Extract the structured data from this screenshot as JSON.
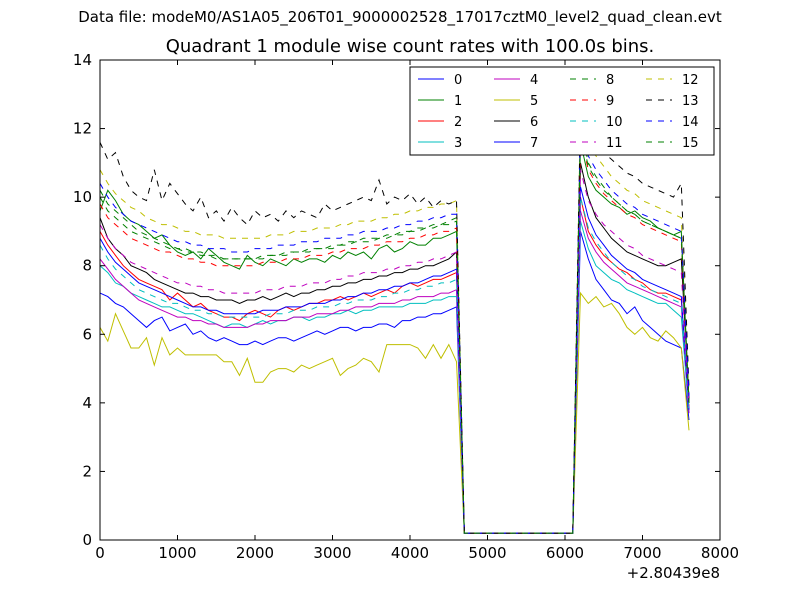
{
  "suptitle": "Data file: modeM0/AS1A05_206T01_9000002528_17017cztM0_level2_quad_clean.evt",
  "chart_data": {
    "type": "line",
    "title": "Quadrant 1 module wise count rates with 100.0s bins.",
    "xlabel": "",
    "ylabel": "",
    "x_offset_label": "+2.80439e8",
    "xlim": [
      0,
      8000
    ],
    "ylim": [
      0,
      14
    ],
    "xticks": [
      0,
      1000,
      2000,
      3000,
      4000,
      5000,
      6000,
      7000,
      8000
    ],
    "yticks": [
      0,
      2,
      4,
      6,
      8,
      10,
      12,
      14
    ],
    "grid": false,
    "legend": {
      "position": "top-right",
      "columns": 4
    },
    "bin_seconds": 100,
    "x": [
      0,
      100,
      200,
      300,
      400,
      500,
      600,
      700,
      800,
      900,
      1000,
      1100,
      1200,
      1300,
      1400,
      1500,
      1600,
      1700,
      1800,
      1900,
      2000,
      2100,
      2200,
      2300,
      2400,
      2500,
      2600,
      2700,
      2800,
      2900,
      3000,
      3100,
      3200,
      3300,
      3400,
      3500,
      3600,
      3700,
      3800,
      3900,
      4000,
      4100,
      4200,
      4300,
      4400,
      4500,
      4600,
      4700,
      4800,
      4900,
      5000,
      5100,
      5200,
      5300,
      5400,
      5500,
      5600,
      5700,
      5800,
      5900,
      6000,
      6100,
      6200,
      6300,
      6400,
      6500,
      6600,
      6700,
      6800,
      6900,
      7000,
      7100,
      7200,
      7300,
      7400,
      7500,
      7600
    ],
    "gap": {
      "start": 4700,
      "end": 6200,
      "dip_value": 0.2,
      "fall_index": 46,
      "rise_index": 62
    },
    "series": [
      {
        "name": "0",
        "color": "#0000ff",
        "dash": false,
        "pre": [
          7.2,
          7.1,
          6.9,
          6.8,
          6.6,
          6.4,
          6.2,
          6.4,
          6.5,
          6.1,
          6.2,
          6.3,
          6.0,
          6.1,
          5.9,
          5.8,
          5.9,
          5.8,
          5.7,
          5.7,
          5.8,
          5.7,
          5.8,
          5.9,
          5.9,
          5.8,
          5.9,
          6.0,
          6.1,
          6.0,
          6.1,
          6.2,
          6.2,
          6.1,
          6.2,
          6.2,
          6.3,
          6.3,
          6.2,
          6.4,
          6.4,
          6.5,
          6.5,
          6.6,
          6.6,
          6.7,
          6.8
        ],
        "post": [
          9.0,
          8.2,
          7.6,
          7.3,
          7.0,
          6.9,
          6.6,
          6.8,
          6.4,
          6.2,
          6.0,
          5.8,
          5.7,
          5.6,
          3.5
        ]
      },
      {
        "name": "1",
        "color": "#008000",
        "dash": false,
        "pre": [
          9.6,
          10.2,
          9.9,
          9.5,
          9.3,
          9.2,
          9.0,
          8.8,
          8.9,
          8.6,
          8.4,
          8.3,
          8.4,
          8.2,
          8.5,
          8.3,
          8.1,
          8.0,
          7.9,
          8.3,
          8.1,
          8.0,
          8.2,
          8.1,
          8.0,
          8.2,
          8.1,
          8.2,
          8.2,
          8.1,
          8.3,
          8.2,
          8.4,
          8.3,
          8.4,
          8.2,
          8.5,
          8.6,
          8.4,
          8.5,
          8.7,
          8.6,
          8.6,
          8.8,
          8.8,
          8.9,
          9.0
        ],
        "post": [
          11.6,
          10.6,
          10.2,
          10.0,
          9.8,
          9.7,
          9.5,
          9.6,
          9.4,
          9.3,
          9.1,
          9.0,
          8.9,
          9.0,
          4.0
        ]
      },
      {
        "name": "2",
        "color": "#ff0000",
        "dash": false,
        "pre": [
          9.0,
          8.6,
          8.3,
          8.0,
          7.8,
          7.6,
          7.5,
          7.4,
          7.3,
          7.0,
          7.2,
          7.0,
          6.8,
          6.9,
          6.7,
          6.6,
          6.5,
          6.5,
          6.4,
          6.6,
          6.7,
          6.6,
          6.5,
          6.7,
          6.8,
          6.7,
          6.8,
          6.9,
          6.9,
          7.0,
          7.0,
          7.1,
          7.0,
          7.1,
          7.2,
          7.1,
          7.2,
          7.3,
          7.2,
          7.4,
          7.5,
          7.4,
          7.5,
          7.6,
          7.6,
          7.7,
          7.8
        ],
        "post": [
          10.0,
          9.0,
          8.6,
          8.3,
          8.1,
          7.9,
          7.8,
          7.6,
          7.5,
          7.3,
          7.2,
          7.2,
          7.1,
          7.0,
          3.8
        ]
      },
      {
        "name": "3",
        "color": "#00bfbf",
        "dash": false,
        "pre": [
          8.0,
          7.8,
          7.5,
          7.4,
          7.2,
          7.1,
          7.0,
          6.9,
          6.8,
          6.8,
          6.7,
          6.6,
          6.6,
          6.5,
          6.4,
          6.3,
          6.2,
          6.3,
          6.3,
          6.2,
          6.3,
          6.4,
          6.3,
          6.4,
          6.4,
          6.5,
          6.5,
          6.4,
          6.5,
          6.5,
          6.6,
          6.6,
          6.7,
          6.6,
          6.7,
          6.7,
          6.8,
          6.8,
          6.8,
          6.8,
          6.9,
          6.9,
          6.9,
          7.0,
          7.0,
          7.1,
          7.1
        ],
        "post": [
          9.3,
          8.5,
          8.0,
          7.8,
          7.6,
          7.5,
          7.3,
          7.2,
          7.1,
          7.0,
          6.9,
          6.9,
          6.7,
          6.5,
          3.7
        ]
      },
      {
        "name": "4",
        "color": "#bf00bf",
        "dash": false,
        "pre": [
          8.2,
          7.9,
          7.6,
          7.4,
          7.2,
          7.0,
          6.9,
          6.8,
          6.7,
          6.6,
          6.5,
          6.5,
          6.4,
          6.4,
          6.3,
          6.3,
          6.2,
          6.2,
          6.2,
          6.2,
          6.3,
          6.3,
          6.4,
          6.4,
          6.4,
          6.5,
          6.5,
          6.5,
          6.6,
          6.6,
          6.6,
          6.7,
          6.7,
          6.8,
          6.8,
          6.8,
          6.9,
          6.9,
          6.9,
          7.0,
          7.0,
          7.1,
          7.1,
          7.1,
          7.2,
          7.2,
          7.3
        ],
        "post": [
          9.6,
          8.8,
          8.4,
          8.1,
          7.9,
          7.7,
          7.5,
          7.4,
          7.3,
          7.2,
          7.1,
          7.0,
          6.9,
          6.8,
          3.7
        ]
      },
      {
        "name": "5",
        "color": "#bfbf00",
        "dash": false,
        "pre": [
          6.2,
          5.8,
          6.6,
          6.1,
          5.6,
          5.6,
          5.9,
          5.1,
          5.9,
          5.4,
          5.6,
          5.4,
          5.4,
          5.4,
          5.4,
          5.4,
          5.2,
          5.2,
          4.8,
          5.3,
          4.6,
          4.6,
          4.9,
          5.0,
          5.0,
          4.9,
          5.1,
          5.0,
          5.1,
          5.2,
          5.3,
          4.8,
          5.0,
          5.1,
          5.3,
          5.2,
          4.9,
          5.7,
          5.7,
          5.7,
          5.7,
          5.6,
          5.3,
          5.7,
          5.3,
          5.7,
          5.2
        ],
        "post": [
          7.2,
          6.9,
          7.1,
          6.8,
          6.9,
          6.6,
          6.2,
          6.0,
          6.2,
          5.9,
          5.8,
          6.1,
          5.9,
          5.6,
          3.2
        ]
      },
      {
        "name": "6",
        "color": "#000000",
        "dash": false,
        "pre": [
          9.4,
          8.8,
          8.5,
          8.3,
          8.0,
          7.9,
          7.8,
          7.6,
          7.5,
          7.4,
          7.3,
          7.2,
          7.2,
          7.1,
          7.1,
          7.0,
          7.0,
          7.0,
          6.9,
          7.0,
          7.0,
          7.1,
          7.0,
          7.1,
          7.2,
          7.1,
          7.2,
          7.2,
          7.3,
          7.3,
          7.4,
          7.4,
          7.5,
          7.5,
          7.6,
          7.6,
          7.7,
          7.7,
          7.8,
          7.8,
          7.9,
          7.9,
          8.0,
          8.0,
          8.1,
          8.2,
          8.4
        ],
        "post": [
          11.0,
          10.0,
          9.4,
          9.1,
          8.8,
          8.6,
          8.4,
          8.3,
          8.2,
          8.1,
          8.0,
          8.0,
          8.1,
          8.2,
          4.1
        ]
      },
      {
        "name": "7",
        "color": "#0000ff",
        "dash": false,
        "pre": [
          8.8,
          8.4,
          8.1,
          7.9,
          7.7,
          7.5,
          7.4,
          7.3,
          7.2,
          7.1,
          7.0,
          6.9,
          6.8,
          6.8,
          6.7,
          6.7,
          6.6,
          6.6,
          6.6,
          6.6,
          6.6,
          6.7,
          6.7,
          6.7,
          6.8,
          6.8,
          6.8,
          6.9,
          6.9,
          6.9,
          7.0,
          7.0,
          7.1,
          7.1,
          7.2,
          7.2,
          7.3,
          7.3,
          7.4,
          7.4,
          7.5,
          7.5,
          7.6,
          7.7,
          7.7,
          7.8,
          7.9
        ],
        "post": [
          10.3,
          9.4,
          8.9,
          8.6,
          8.3,
          8.1,
          7.9,
          7.8,
          7.6,
          7.5,
          7.4,
          7.3,
          7.2,
          7.1,
          3.8
        ]
      },
      {
        "name": "8",
        "color": "#008000",
        "dash": true,
        "pre": [
          10.2,
          9.8,
          9.6,
          9.4,
          9.2,
          9.0,
          8.9,
          8.8,
          8.7,
          8.6,
          8.5,
          8.5,
          8.4,
          8.4,
          8.3,
          8.3,
          8.2,
          8.2,
          8.2,
          8.2,
          8.2,
          8.3,
          8.3,
          8.3,
          8.4,
          8.4,
          8.4,
          8.5,
          8.5,
          8.5,
          8.6,
          8.6,
          8.7,
          8.7,
          8.8,
          8.8,
          8.8,
          8.9,
          8.9,
          9.0,
          9.0,
          9.1,
          9.1,
          9.2,
          9.2,
          9.3,
          9.4
        ],
        "post": [
          12.1,
          11.0,
          10.6,
          10.3,
          10.0,
          9.8,
          9.6,
          9.5,
          9.3,
          9.2,
          9.1,
          9.0,
          8.9,
          8.8,
          4.1
        ]
      },
      {
        "name": "9",
        "color": "#ff0000",
        "dash": true,
        "pre": [
          9.8,
          9.4,
          9.2,
          9.0,
          8.8,
          8.7,
          8.6,
          8.5,
          8.4,
          8.4,
          8.3,
          8.2,
          8.2,
          8.1,
          8.1,
          8.0,
          8.0,
          8.0,
          8.0,
          8.0,
          8.0,
          8.1,
          8.1,
          8.1,
          8.2,
          8.2,
          8.2,
          8.3,
          8.3,
          8.3,
          8.4,
          8.4,
          8.5,
          8.5,
          8.5,
          8.6,
          8.6,
          8.7,
          8.7,
          8.7,
          8.8,
          8.8,
          8.9,
          8.9,
          9.0,
          9.0,
          9.1
        ],
        "post": [
          11.8,
          10.8,
          10.4,
          10.1,
          9.9,
          9.7,
          9.5,
          9.4,
          9.2,
          9.1,
          9.0,
          8.9,
          8.8,
          8.7,
          4.0
        ]
      },
      {
        "name": "10",
        "color": "#00bfbf",
        "dash": true,
        "pre": [
          8.6,
          8.2,
          7.9,
          7.7,
          7.5,
          7.3,
          7.2,
          7.1,
          7.0,
          6.9,
          6.9,
          6.8,
          6.7,
          6.7,
          6.6,
          6.6,
          6.5,
          6.5,
          6.5,
          6.5,
          6.5,
          6.5,
          6.6,
          6.6,
          6.6,
          6.7,
          6.7,
          6.7,
          6.8,
          6.8,
          6.8,
          6.9,
          6.9,
          7.0,
          7.0,
          7.0,
          7.1,
          7.1,
          7.2,
          7.2,
          7.3,
          7.3,
          7.4,
          7.4,
          7.5,
          7.5,
          7.6
        ],
        "post": [
          10.0,
          9.1,
          8.7,
          8.4,
          8.1,
          7.9,
          7.7,
          7.6,
          7.4,
          7.3,
          7.2,
          7.1,
          7.0,
          6.9,
          3.7
        ]
      },
      {
        "name": "11",
        "color": "#bf00bf",
        "dash": true,
        "pre": [
          9.2,
          8.8,
          8.5,
          8.3,
          8.1,
          8.0,
          7.9,
          7.8,
          7.7,
          7.6,
          7.5,
          7.5,
          7.4,
          7.4,
          7.3,
          7.3,
          7.2,
          7.2,
          7.2,
          7.2,
          7.2,
          7.3,
          7.3,
          7.3,
          7.4,
          7.4,
          7.4,
          7.5,
          7.5,
          7.5,
          7.6,
          7.6,
          7.7,
          7.7,
          7.8,
          7.8,
          7.8,
          7.9,
          7.9,
          8.0,
          8.0,
          8.1,
          8.1,
          8.2,
          8.2,
          8.3,
          8.4
        ],
        "post": [
          10.8,
          9.9,
          9.5,
          9.2,
          9.0,
          8.8,
          8.6,
          8.5,
          8.3,
          8.2,
          8.1,
          8.0,
          7.9,
          7.8,
          3.9
        ]
      },
      {
        "name": "12",
        "color": "#bfbf00",
        "dash": true,
        "pre": [
          10.8,
          10.4,
          10.1,
          9.9,
          9.7,
          9.6,
          9.4,
          9.3,
          9.2,
          9.2,
          9.1,
          9.0,
          9.0,
          8.9,
          8.9,
          8.9,
          8.8,
          8.8,
          8.8,
          8.8,
          8.8,
          8.8,
          8.9,
          8.9,
          8.9,
          9.0,
          9.0,
          9.0,
          9.1,
          9.1,
          9.1,
          9.2,
          9.2,
          9.3,
          9.3,
          9.3,
          9.4,
          9.4,
          9.5,
          9.5,
          9.6,
          9.6,
          9.7,
          9.7,
          9.8,
          9.8,
          9.9
        ],
        "post": [
          12.5,
          11.6,
          11.2,
          10.9,
          10.6,
          10.4,
          10.2,
          10.1,
          9.9,
          9.8,
          9.7,
          9.6,
          9.5,
          9.4,
          4.3
        ]
      },
      {
        "name": "13",
        "color": "#000000",
        "dash": true,
        "pre": [
          11.6,
          11.1,
          11.3,
          10.6,
          10.2,
          10.0,
          9.9,
          10.8,
          9.9,
          10.4,
          10.1,
          9.8,
          9.6,
          10.0,
          9.4,
          9.6,
          9.3,
          9.7,
          9.4,
          9.2,
          9.6,
          9.4,
          9.5,
          9.3,
          9.6,
          9.4,
          9.6,
          9.5,
          9.4,
          9.8,
          9.6,
          9.7,
          9.8,
          9.9,
          10.0,
          9.9,
          10.5,
          9.8,
          10.0,
          9.9,
          10.1,
          9.8,
          10.0,
          9.7,
          9.9,
          9.8,
          9.9
        ],
        "post": [
          12.6,
          11.9,
          11.6,
          11.3,
          11.1,
          10.9,
          10.7,
          10.6,
          10.4,
          10.3,
          10.2,
          10.1,
          10.0,
          10.4,
          4.4
        ]
      },
      {
        "name": "14",
        "color": "#0000ff",
        "dash": true,
        "pre": [
          10.4,
          10.0,
          9.7,
          9.5,
          9.3,
          9.2,
          9.1,
          9.0,
          8.9,
          8.8,
          8.7,
          8.7,
          8.6,
          8.6,
          8.5,
          8.5,
          8.5,
          8.4,
          8.4,
          8.4,
          8.5,
          8.5,
          8.5,
          8.6,
          8.6,
          8.6,
          8.7,
          8.7,
          8.7,
          8.8,
          8.8,
          8.8,
          8.9,
          8.9,
          9.0,
          9.0,
          9.0,
          9.1,
          9.1,
          9.2,
          9.2,
          9.3,
          9.3,
          9.4,
          9.4,
          9.5,
          9.5
        ],
        "post": [
          12.2,
          11.2,
          10.8,
          10.5,
          10.2,
          10.0,
          9.8,
          9.7,
          9.5,
          9.4,
          9.3,
          9.2,
          9.1,
          9.0,
          4.2
        ]
      },
      {
        "name": "15",
        "color": "#008000",
        "dash": true,
        "pre": [
          10.0,
          9.6,
          9.4,
          9.2,
          9.0,
          8.9,
          8.8,
          8.7,
          8.6,
          8.5,
          8.5,
          8.4,
          8.4,
          8.3,
          8.3,
          8.2,
          8.2,
          8.2,
          8.2,
          8.2,
          8.2,
          8.2,
          8.3,
          8.3,
          8.3,
          8.4,
          8.4,
          8.4,
          8.5,
          8.5,
          8.5,
          8.6,
          8.6,
          8.7,
          8.7,
          8.7,
          8.8,
          8.8,
          8.9,
          8.9,
          9.0,
          9.0,
          9.1,
          9.1,
          9.2,
          9.2,
          9.3
        ],
        "post": [
          11.9,
          10.9,
          10.5,
          10.2,
          10.0,
          9.8,
          9.6,
          9.5,
          9.3,
          9.2,
          9.1,
          9.0,
          8.9,
          8.8,
          4.0
        ]
      }
    ]
  }
}
